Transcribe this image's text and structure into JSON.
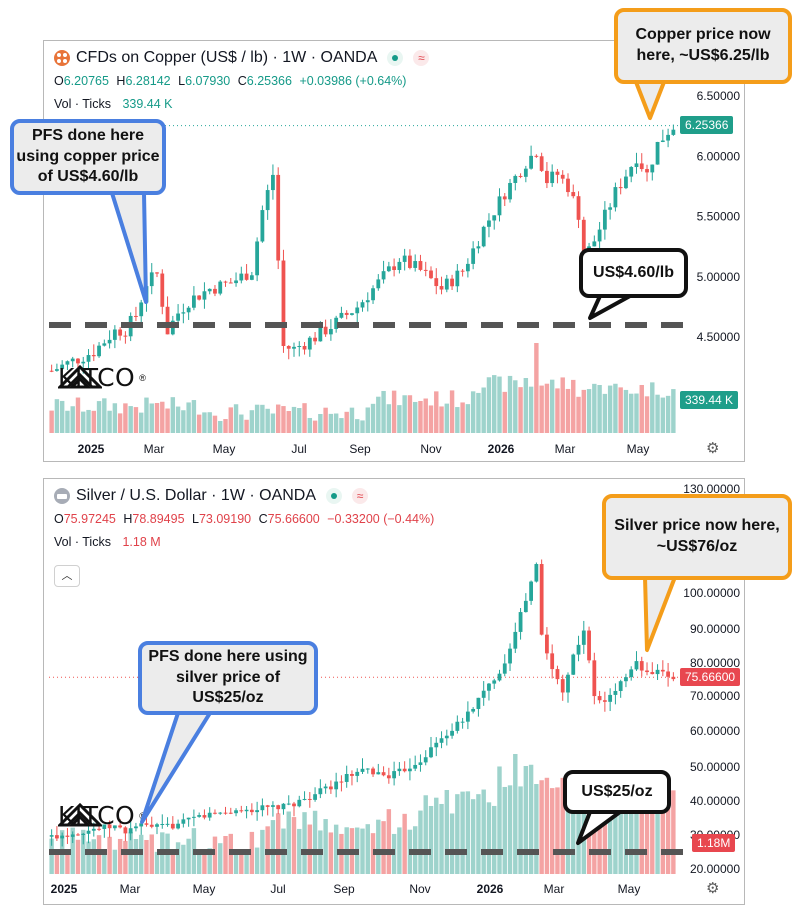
{
  "copper": {
    "title": "CFDs on Copper (US$ / lb) · 1W · OANDA",
    "ohlc": {
      "o_label": "O",
      "o": "6.20765",
      "h_label": "H",
      "h": "6.28142",
      "l_label": "L",
      "l": "6.07930",
      "c_label": "C",
      "c": "6.25366",
      "change": "+0.03986 (+0.64%)"
    },
    "vol_label": "Vol · Ticks",
    "vol_value": "339.44 K",
    "price_tag": "6.25366",
    "vol_tag": "339.44 K",
    "icon_a": "copper-symbol-icon",
    "annotations": {
      "pfs": "PFS done here using copper price of US$4.60/lb",
      "now": "Copper price now here, ~US$6.25/lb",
      "level": "US$4.60/lb"
    }
  },
  "silver": {
    "title": "Silver / U.S. Dollar · 1W · OANDA",
    "ohlc": {
      "o_label": "O",
      "o": "75.97245",
      "h_label": "H",
      "h": "78.89495",
      "l_label": "L",
      "l": "73.09190",
      "c_label": "C",
      "c": "75.66600",
      "change": "−0.33200 (−0.44%)"
    },
    "vol_label": "Vol · Ticks",
    "vol_value": "1.18 M",
    "price_tag": "75.66600",
    "vol_tag": "1.18M",
    "annotations": {
      "pfs": "PFS done here using silver price of US$25/oz",
      "now": "Silver price now here, ~US$76/oz",
      "level": "US$25/oz"
    }
  },
  "logo": {
    "text": "KITCO",
    "reg": "®"
  },
  "colors": {
    "up": "#26a69a",
    "down": "#ef5350",
    "vol_up": "#9ed3cc",
    "vol_down": "#f4a3a3",
    "blue": "#4a7fe0",
    "orange": "#f49d1a",
    "dash": "#555555"
  },
  "chart_data": [
    {
      "type": "candlestick",
      "title": "CFDs on Copper (US$ / lb) · 1W · OANDA",
      "x_ticks": [
        "2025",
        "Mar",
        "May",
        "Jul",
        "Sep",
        "Nov",
        "2026",
        "Mar",
        "May"
      ],
      "y_ticks": [
        "4.50000",
        "5.00000",
        "5.50000",
        "6.00000",
        "6.50000"
      ],
      "ylim": [
        4.0,
        6.7
      ],
      "reference_level": 4.6,
      "last_price": 6.25366,
      "close_path": [
        [
          0,
          4.22
        ],
        [
          4,
          4.3
        ],
        [
          8,
          4.38
        ],
        [
          12,
          4.55
        ],
        [
          14,
          4.56
        ],
        [
          16,
          4.68
        ],
        [
          18,
          4.95
        ],
        [
          20,
          5.02
        ],
        [
          22,
          4.55
        ],
        [
          24,
          4.7
        ],
        [
          26,
          4.8
        ],
        [
          30,
          4.9
        ],
        [
          34,
          4.95
        ],
        [
          38,
          5.05
        ],
        [
          40,
          5.55
        ],
        [
          42,
          5.85
        ],
        [
          44,
          4.42
        ],
        [
          46,
          4.4
        ],
        [
          50,
          4.5
        ],
        [
          54,
          4.62
        ],
        [
          58,
          4.75
        ],
        [
          62,
          4.95
        ],
        [
          66,
          5.15
        ],
        [
          70,
          5.05
        ],
        [
          74,
          4.9
        ],
        [
          78,
          5.05
        ],
        [
          82,
          5.4
        ],
        [
          86,
          5.7
        ],
        [
          90,
          5.95
        ],
        [
          92,
          6.05
        ],
        [
          94,
          5.8
        ],
        [
          96,
          5.85
        ],
        [
          98,
          5.75
        ],
        [
          100,
          5.52
        ],
        [
          101,
          5.15
        ],
        [
          103,
          5.3
        ],
        [
          107,
          5.7
        ],
        [
          111,
          6.0
        ],
        [
          113,
          5.85
        ],
        [
          115,
          6.1
        ],
        [
          117,
          6.21
        ],
        [
          118,
          6.25
        ]
      ],
      "volume_peak": 520,
      "volume_last": "339.44K"
    },
    {
      "type": "candlestick",
      "title": "Silver / U.S. Dollar · 1W · OANDA",
      "x_ticks": [
        "2025",
        "Mar",
        "May",
        "Jul",
        "Sep",
        "Nov",
        "2026",
        "Mar",
        "May"
      ],
      "y_ticks": [
        "20.00000",
        "30.00000",
        "40.00000",
        "50.00000",
        "60.00000",
        "70.00000",
        "80.00000",
        "90.00000",
        "100.00000",
        "130.00000"
      ],
      "ylim": [
        18,
        130
      ],
      "reference_level": 25,
      "last_price": 75.666,
      "close_path": [
        [
          0,
          29.5
        ],
        [
          4,
          30.5
        ],
        [
          8,
          31.8
        ],
        [
          12,
          32.5
        ],
        [
          14,
          31.0
        ],
        [
          16,
          32.8
        ],
        [
          20,
          32.3
        ],
        [
          24,
          33.0
        ],
        [
          28,
          35.5
        ],
        [
          32,
          36.5
        ],
        [
          36,
          37.2
        ],
        [
          40,
          37.8
        ],
        [
          44,
          38.2
        ],
        [
          48,
          40.5
        ],
        [
          52,
          43.5
        ],
        [
          56,
          47.0
        ],
        [
          60,
          49.0
        ],
        [
          62,
          48.0
        ],
        [
          64,
          47.5
        ],
        [
          66,
          48.5
        ],
        [
          70,
          52.0
        ],
        [
          74,
          58.0
        ],
        [
          78,
          63.0
        ],
        [
          82,
          71.0
        ],
        [
          86,
          80.0
        ],
        [
          88,
          90.0
        ],
        [
          90,
          98.0
        ],
        [
          92,
          108.0
        ],
        [
          93,
          88.0
        ],
        [
          95,
          78.0
        ],
        [
          97,
          72.0
        ],
        [
          99,
          82.0
        ],
        [
          101,
          90.0
        ],
        [
          103,
          70.0
        ],
        [
          105,
          68.0
        ],
        [
          107,
          72.0
        ],
        [
          109,
          76.0
        ],
        [
          111,
          80.0
        ],
        [
          113,
          76.5
        ],
        [
          115,
          77.0
        ],
        [
          117,
          76.0
        ],
        [
          118,
          75.7
        ]
      ],
      "volume_peak": 260,
      "volume_last": "1.18M"
    }
  ]
}
